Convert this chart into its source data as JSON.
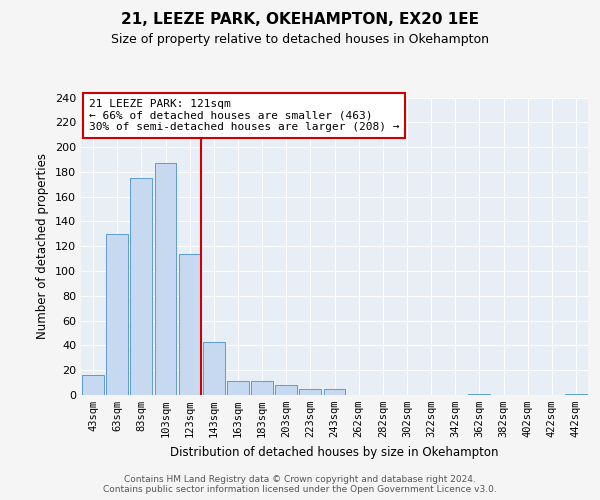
{
  "title": "21, LEEZE PARK, OKEHAMPTON, EX20 1EE",
  "subtitle": "Size of property relative to detached houses in Okehampton",
  "xlabel": "Distribution of detached houses by size in Okehampton",
  "ylabel": "Number of detached properties",
  "bar_labels": [
    "43sqm",
    "63sqm",
    "83sqm",
    "103sqm",
    "123sqm",
    "143sqm",
    "163sqm",
    "183sqm",
    "203sqm",
    "223sqm",
    "243sqm",
    "262sqm",
    "282sqm",
    "302sqm",
    "322sqm",
    "342sqm",
    "362sqm",
    "382sqm",
    "402sqm",
    "422sqm",
    "442sqm"
  ],
  "bar_values": [
    16,
    130,
    175,
    187,
    114,
    43,
    11,
    11,
    8,
    5,
    5,
    0,
    0,
    0,
    0,
    0,
    1,
    0,
    0,
    0,
    1
  ],
  "bar_color": "#c6d9f0",
  "bar_edge_color": "#5b9bd5",
  "vline_color": "#cc0000",
  "annotation_title": "21 LEEZE PARK: 121sqm",
  "annotation_line1": "← 66% of detached houses are smaller (463)",
  "annotation_line2": "30% of semi-detached houses are larger (208) →",
  "annotation_box_color": "#ffffff",
  "annotation_box_edge": "#cc0000",
  "ylim": [
    0,
    240
  ],
  "yticks": [
    0,
    20,
    40,
    60,
    80,
    100,
    120,
    140,
    160,
    180,
    200,
    220,
    240
  ],
  "plot_bg_color": "#e8eef5",
  "fig_bg_color": "#f5f5f5",
  "footer1": "Contains HM Land Registry data © Crown copyright and database right 2024.",
  "footer2": "Contains public sector information licensed under the Open Government Licence v3.0."
}
